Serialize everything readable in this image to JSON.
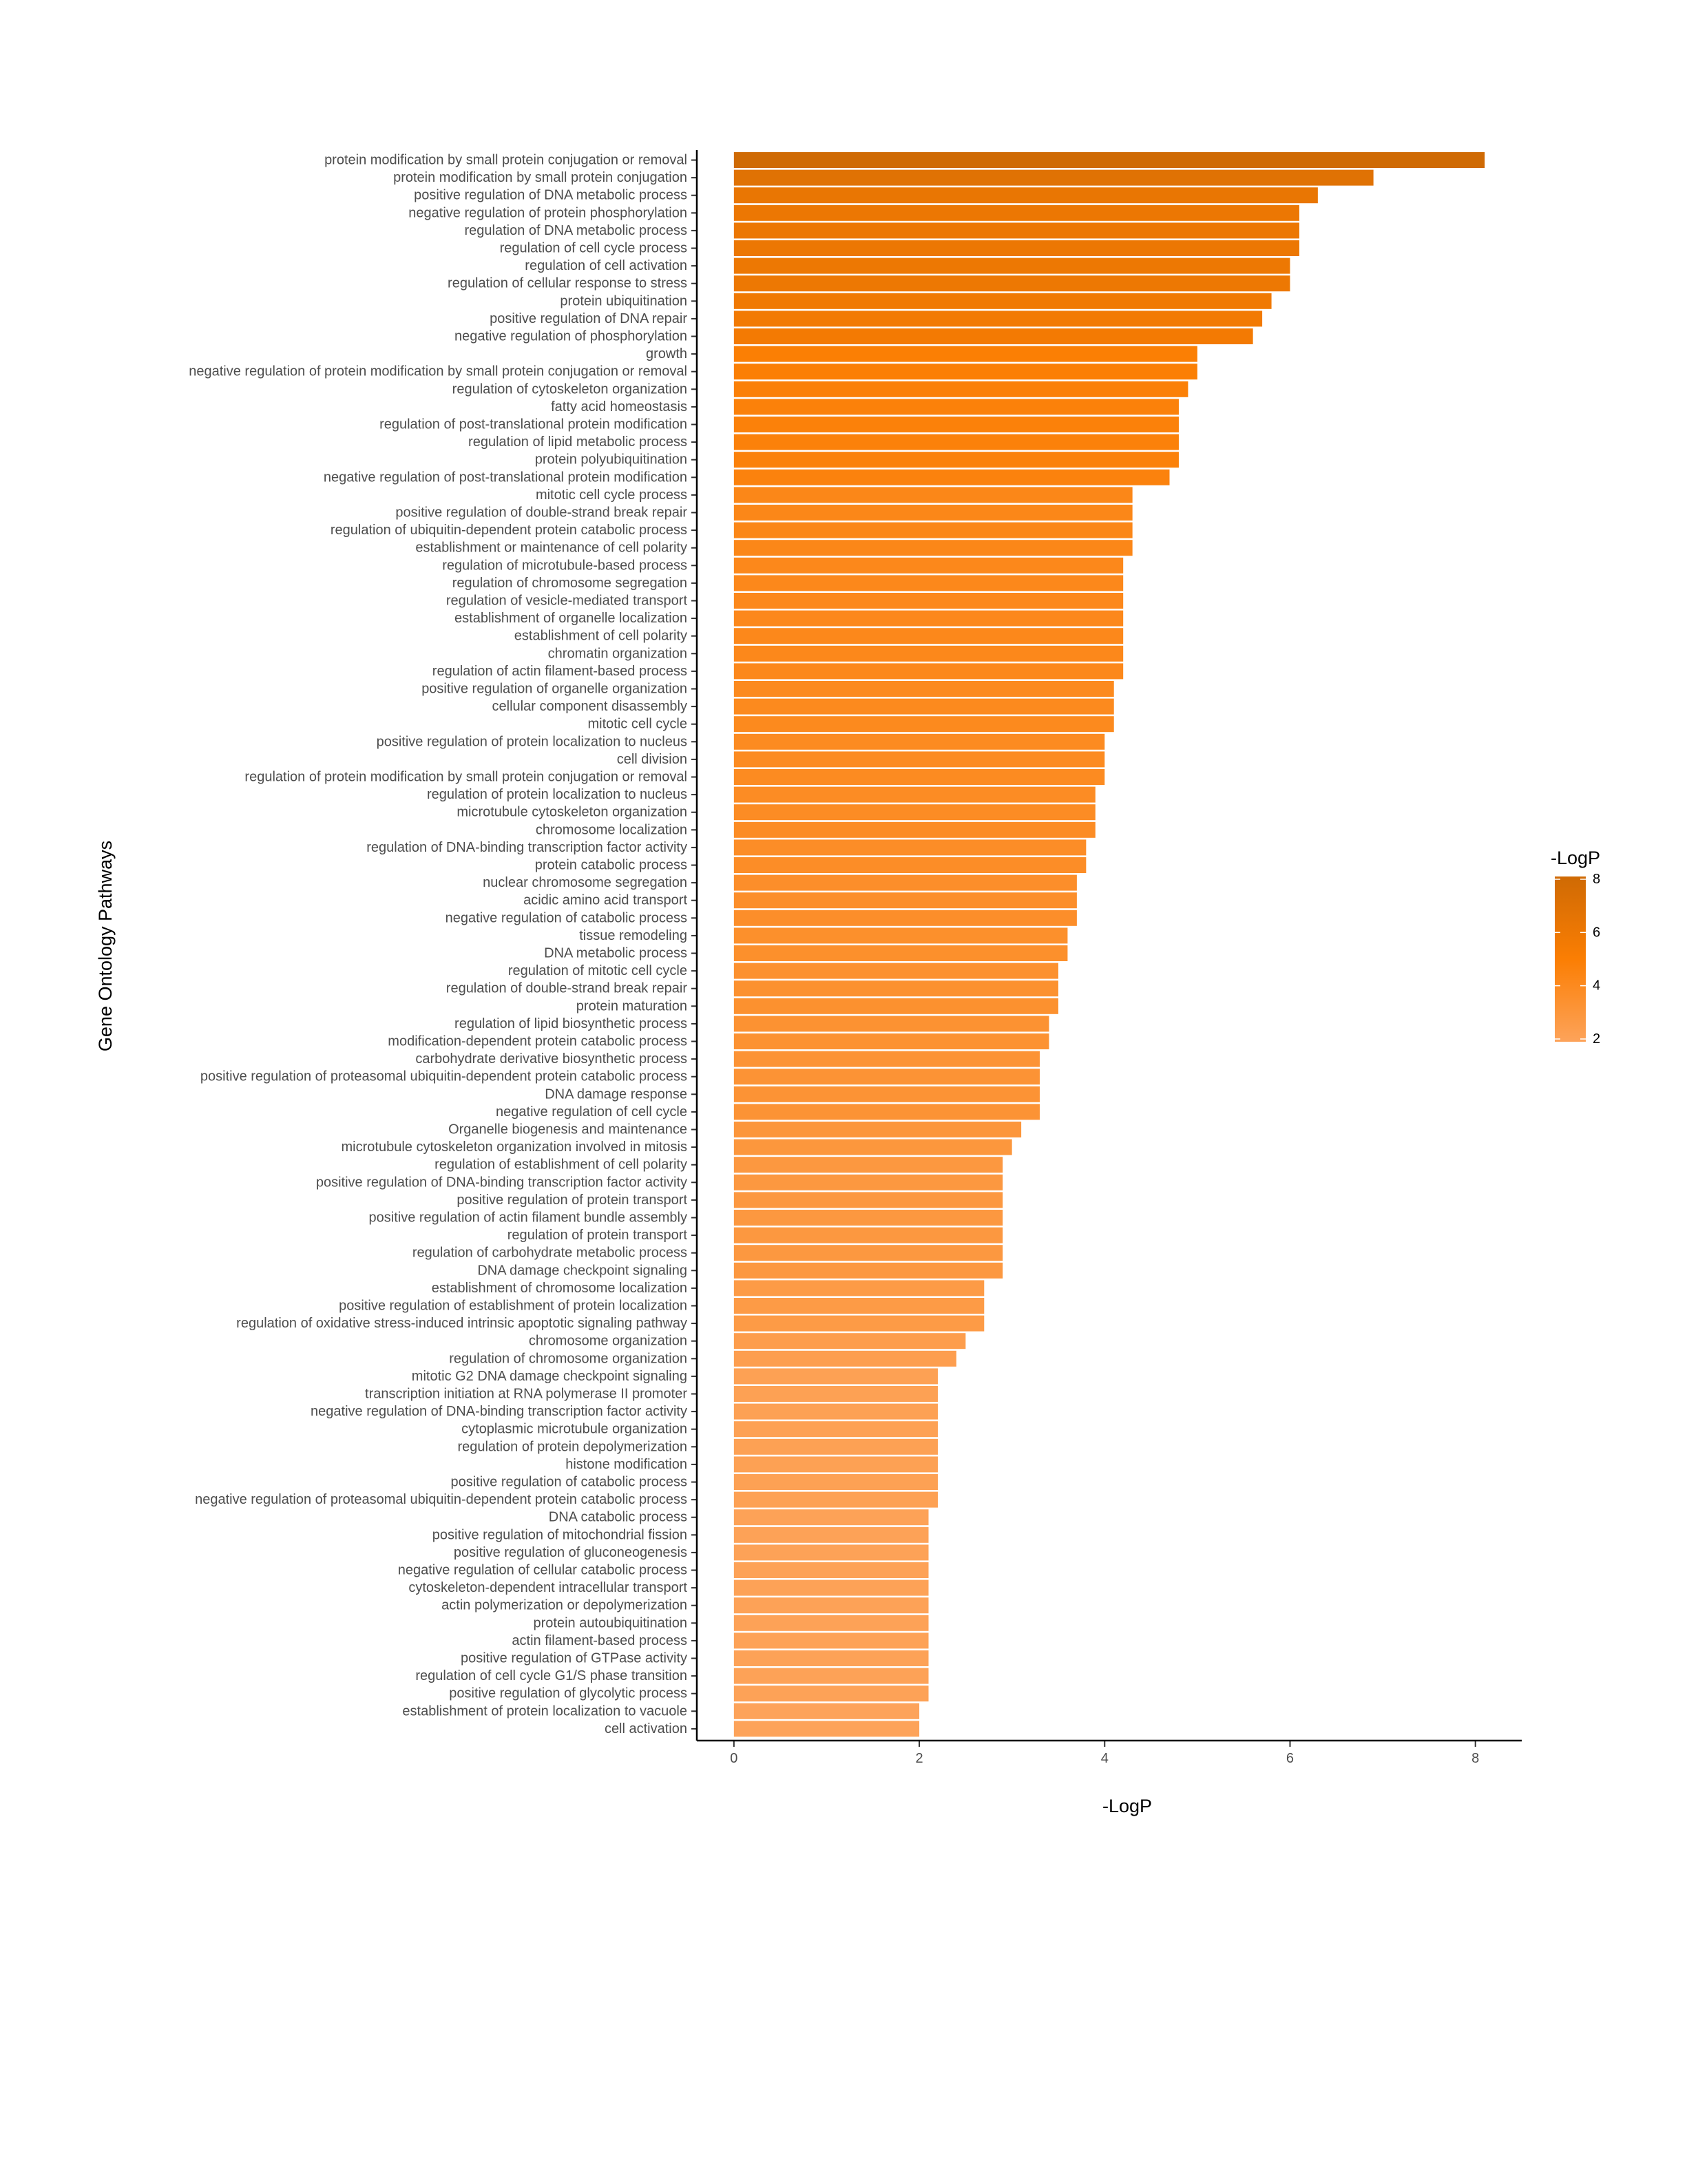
{
  "chart_data": {
    "type": "bar",
    "orientation": "horizontal",
    "xlabel": "-LogP",
    "ylabel": "Gene Ontology Pathways",
    "xlim": [
      -0.4,
      8.5
    ],
    "xticks": [
      0,
      2,
      4,
      6,
      8
    ],
    "grid": false,
    "legend": {
      "title": "-LogP",
      "ticks": [
        2,
        4,
        6,
        8
      ],
      "placement": "right",
      "low_color": "#fda35a",
      "mid_color": "#fb7e03",
      "high_color": "#cf6a04"
    },
    "categories": [
      "protein modification by small protein conjugation or removal",
      "protein modification by small protein conjugation",
      "positive regulation of DNA metabolic process",
      "negative regulation of protein phosphorylation",
      "regulation of DNA metabolic process",
      "regulation of cell cycle process",
      "regulation of cell activation",
      "regulation of cellular response to stress",
      "protein ubiquitination",
      "positive regulation of DNA repair",
      "negative regulation of phosphorylation",
      "growth",
      "negative regulation of protein modification by small protein conjugation or removal",
      "regulation of cytoskeleton organization",
      "fatty acid homeostasis",
      "regulation of post-translational protein modification",
      "regulation of lipid metabolic process",
      "protein polyubiquitination",
      "negative regulation of post-translational protein modification",
      "mitotic cell cycle process",
      "positive regulation of double-strand break repair",
      "regulation of ubiquitin-dependent protein catabolic process",
      "establishment or maintenance of cell polarity",
      "regulation of microtubule-based process",
      "regulation of chromosome segregation",
      "regulation of vesicle-mediated transport",
      "establishment of organelle localization",
      "establishment of cell polarity",
      "chromatin organization",
      "regulation of actin filament-based process",
      "positive regulation of organelle organization",
      "cellular component disassembly",
      "mitotic cell cycle",
      "positive regulation of protein localization to nucleus",
      "cell division",
      "regulation of protein modification by small protein conjugation or removal",
      "regulation of protein localization to nucleus",
      "microtubule cytoskeleton organization",
      "chromosome localization",
      "regulation of DNA-binding transcription factor activity",
      "protein catabolic process",
      "nuclear chromosome segregation",
      "acidic amino acid transport",
      "negative regulation of catabolic process",
      "tissue remodeling",
      "DNA metabolic process",
      "regulation of mitotic cell cycle",
      "regulation of double-strand break repair",
      "protein maturation",
      "regulation of lipid biosynthetic process",
      "modification-dependent protein catabolic process",
      "carbohydrate derivative biosynthetic process",
      "positive regulation of proteasomal ubiquitin-dependent protein catabolic process",
      "DNA damage response",
      "negative regulation of cell cycle",
      "Organelle biogenesis and maintenance",
      "microtubule cytoskeleton organization involved in mitosis",
      "regulation of establishment of cell polarity",
      "positive regulation of DNA-binding transcription factor activity",
      "positive regulation of protein transport",
      "positive regulation of actin filament bundle assembly",
      "regulation of protein transport",
      "regulation of carbohydrate metabolic process",
      "DNA damage checkpoint signaling",
      "establishment of chromosome localization",
      "positive regulation of establishment of protein localization",
      "regulation of oxidative stress-induced intrinsic apoptotic signaling pathway",
      "chromosome organization",
      "regulation of chromosome organization",
      "mitotic G2 DNA damage checkpoint signaling",
      "transcription initiation at RNA polymerase II promoter",
      "negative regulation of DNA-binding transcription factor activity",
      "cytoplasmic microtubule organization",
      "regulation of protein depolymerization",
      "histone modification",
      "positive regulation of catabolic process",
      "negative regulation of proteasomal ubiquitin-dependent protein catabolic process",
      "DNA catabolic process",
      "positive regulation of mitochondrial fission",
      "positive regulation of gluconeogenesis",
      "negative regulation of cellular catabolic process",
      "cytoskeleton-dependent intracellular transport",
      "actin polymerization or depolymerization",
      "protein autoubiquitination",
      "actin filament-based process",
      "positive regulation of GTPase activity",
      "regulation of cell cycle G1/S phase transition",
      "positive regulation of glycolytic process",
      "establishment of protein localization to vacuole",
      "cell activation"
    ],
    "values": [
      8.1,
      6.9,
      6.3,
      6.1,
      6.1,
      6.1,
      6.0,
      6.0,
      5.8,
      5.7,
      5.6,
      5.0,
      5.0,
      4.9,
      4.8,
      4.8,
      4.8,
      4.8,
      4.7,
      4.3,
      4.3,
      4.3,
      4.3,
      4.2,
      4.2,
      4.2,
      4.2,
      4.2,
      4.2,
      4.2,
      4.1,
      4.1,
      4.1,
      4.0,
      4.0,
      4.0,
      3.9,
      3.9,
      3.9,
      3.8,
      3.8,
      3.7,
      3.7,
      3.7,
      3.6,
      3.6,
      3.5,
      3.5,
      3.5,
      3.4,
      3.4,
      3.3,
      3.3,
      3.3,
      3.3,
      3.1,
      3.0,
      2.9,
      2.9,
      2.9,
      2.9,
      2.9,
      2.9,
      2.9,
      2.7,
      2.7,
      2.7,
      2.5,
      2.4,
      2.2,
      2.2,
      2.2,
      2.2,
      2.2,
      2.2,
      2.2,
      2.2,
      2.1,
      2.1,
      2.1,
      2.1,
      2.1,
      2.1,
      2.1,
      2.1,
      2.1,
      2.1,
      2.1,
      2.0,
      2.0
    ]
  }
}
